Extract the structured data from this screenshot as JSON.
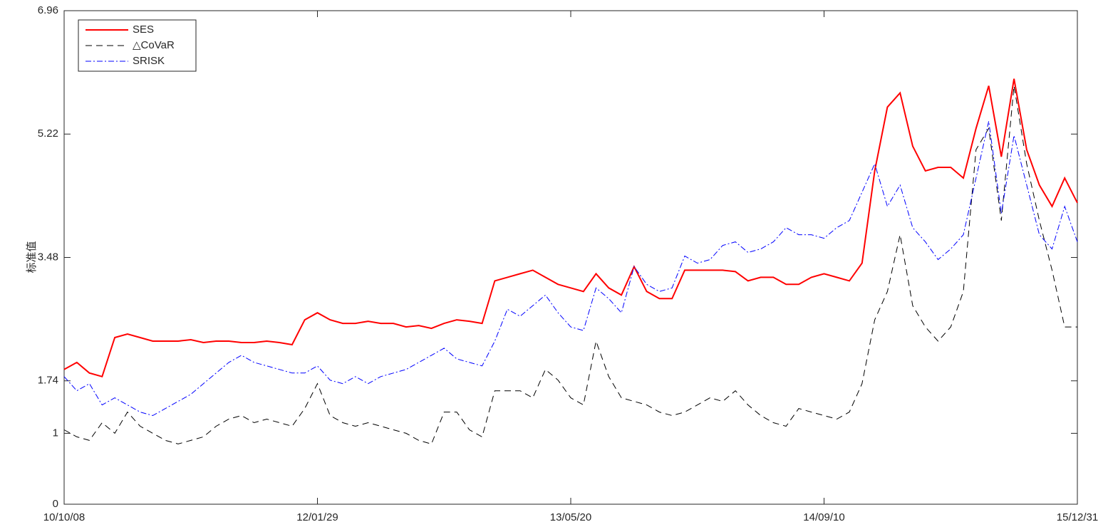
{
  "chart_data": {
    "type": "line",
    "y_label": "标准值",
    "categories": [
      "10/10/08",
      null,
      null,
      null,
      null,
      null,
      null,
      null,
      null,
      null,
      null,
      null,
      null,
      null,
      null,
      null,
      null,
      null,
      null,
      null,
      "12/01/29",
      null,
      null,
      null,
      null,
      null,
      null,
      null,
      null,
      null,
      null,
      null,
      null,
      null,
      null,
      null,
      null,
      null,
      null,
      null,
      "13/05/20",
      null,
      null,
      null,
      null,
      null,
      null,
      null,
      null,
      null,
      null,
      null,
      null,
      null,
      null,
      null,
      null,
      null,
      null,
      null,
      "14/09/10",
      null,
      null,
      null,
      null,
      null,
      null,
      null,
      null,
      null,
      null,
      null,
      null,
      null,
      null,
      null,
      null,
      null,
      null,
      null,
      "15/12/31"
    ],
    "series": [
      {
        "name": "SES",
        "color": "#ff0000",
        "dash": "none",
        "values": [
          1.9,
          2.0,
          1.85,
          1.8,
          2.35,
          2.4,
          2.35,
          2.3,
          2.3,
          2.3,
          2.32,
          2.28,
          2.3,
          2.3,
          2.28,
          2.28,
          2.3,
          2.28,
          2.25,
          2.6,
          2.7,
          2.6,
          2.55,
          2.55,
          2.58,
          2.55,
          2.55,
          2.5,
          2.52,
          2.48,
          2.55,
          2.6,
          2.58,
          2.55,
          3.15,
          3.2,
          3.25,
          3.3,
          3.2,
          3.1,
          3.05,
          3.0,
          3.25,
          3.05,
          2.95,
          3.35,
          3.0,
          2.9,
          2.9,
          3.3,
          3.3,
          3.3,
          3.3,
          3.28,
          3.15,
          3.2,
          3.2,
          3.1,
          3.1,
          3.2,
          3.25,
          3.2,
          3.15,
          3.4,
          4.7,
          5.6,
          5.8,
          5.05,
          4.7,
          4.75,
          4.75,
          4.6,
          5.3,
          5.9,
          4.9,
          6.0,
          5.0,
          4.5,
          4.2,
          4.6,
          4.25
        ]
      },
      {
        "name": "△CoVaR",
        "color": "#000000",
        "dash": "9,6",
        "values": [
          1.05,
          0.95,
          0.9,
          1.15,
          1.0,
          1.3,
          1.1,
          1.0,
          0.9,
          0.85,
          0.9,
          0.95,
          1.1,
          1.2,
          1.25,
          1.15,
          1.2,
          1.15,
          1.1,
          1.35,
          1.7,
          1.25,
          1.15,
          1.1,
          1.15,
          1.1,
          1.05,
          1.0,
          0.9,
          0.85,
          1.3,
          1.3,
          1.05,
          0.95,
          1.6,
          1.6,
          1.6,
          1.5,
          1.9,
          1.75,
          1.5,
          1.4,
          2.3,
          1.8,
          1.5,
          1.45,
          1.4,
          1.3,
          1.25,
          1.3,
          1.4,
          1.5,
          1.45,
          1.6,
          1.4,
          1.25,
          1.15,
          1.1,
          1.35,
          1.3,
          1.25,
          1.2,
          1.3,
          1.7,
          2.6,
          3.0,
          3.8,
          2.8,
          2.5,
          2.3,
          2.5,
          3.0,
          5.0,
          5.3,
          4.0,
          5.9,
          4.8,
          4.0,
          3.3,
          2.5,
          2.5
        ]
      },
      {
        "name": "SRISK",
        "color": "#0000ff",
        "dash": "8,3,2,3",
        "values": [
          1.8,
          1.6,
          1.7,
          1.4,
          1.5,
          1.4,
          1.3,
          1.25,
          1.35,
          1.45,
          1.55,
          1.7,
          1.85,
          2.0,
          2.1,
          2.0,
          1.95,
          1.9,
          1.85,
          1.85,
          1.95,
          1.75,
          1.7,
          1.8,
          1.7,
          1.8,
          1.85,
          1.9,
          2.0,
          2.1,
          2.2,
          2.05,
          2.0,
          1.95,
          2.3,
          2.75,
          2.65,
          2.8,
          2.95,
          2.7,
          2.5,
          2.45,
          3.05,
          2.9,
          2.7,
          3.35,
          3.1,
          3.0,
          3.05,
          3.5,
          3.4,
          3.45,
          3.65,
          3.7,
          3.55,
          3.6,
          3.7,
          3.9,
          3.8,
          3.8,
          3.75,
          3.9,
          4.0,
          4.4,
          4.8,
          4.2,
          4.5,
          3.9,
          3.7,
          3.45,
          3.6,
          3.8,
          4.6,
          5.4,
          4.1,
          5.2,
          4.5,
          3.8,
          3.6,
          4.2,
          3.7
        ]
      }
    ],
    "ylim": [
      0,
      6.96
    ],
    "yticks": [
      0,
      1,
      1.74,
      3.48,
      5.22,
      6.96
    ],
    "legend": "upper-left"
  }
}
